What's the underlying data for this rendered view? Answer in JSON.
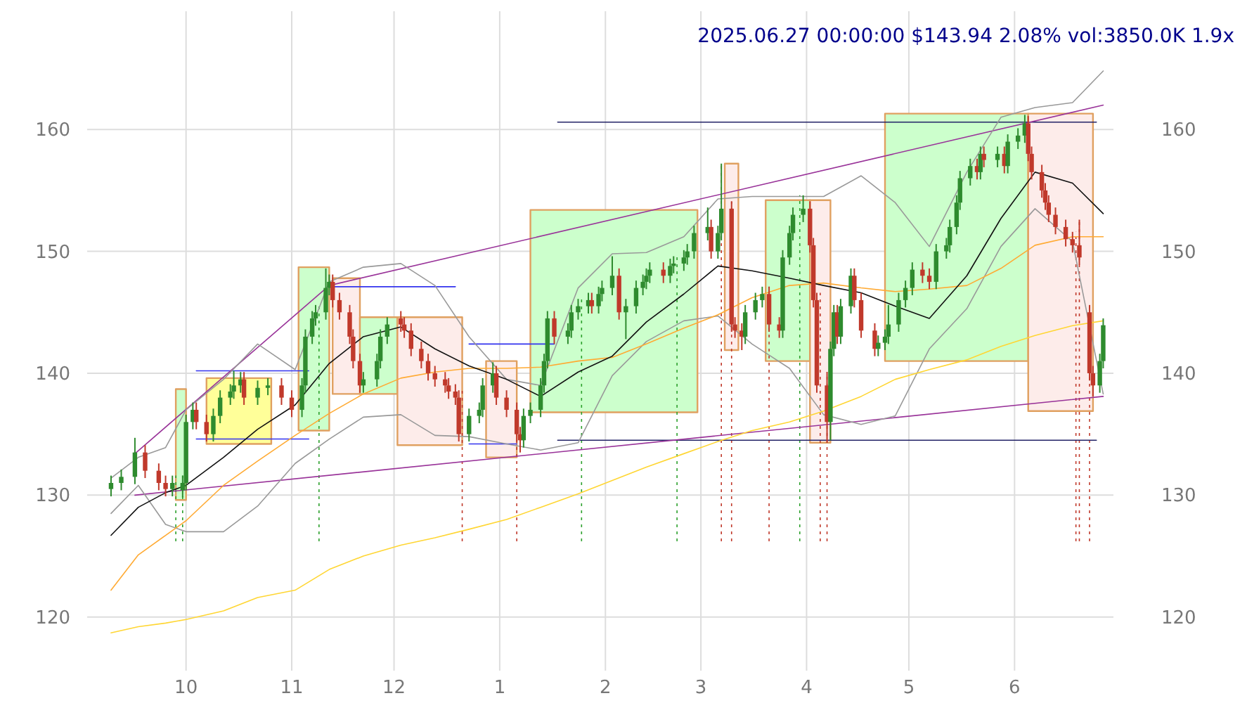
{
  "chart_data": {
    "type": "candlestick",
    "title": "2025.06.27 00:00:00 $143.94 2.08% vol:3850.0K 1.9x",
    "xlim": [
      "2024-09-02",
      "2025-06-30"
    ],
    "xticks": [
      {
        "value": "2024-10-01",
        "label": "10"
      },
      {
        "value": "2024-11-01",
        "label": "11"
      },
      {
        "value": "2024-12-01",
        "label": "12"
      },
      {
        "value": "2025-01-01",
        "label": "1"
      },
      {
        "value": "2025-02-01",
        "label": "2"
      },
      {
        "value": "2025-03-01",
        "label": "3"
      },
      {
        "value": "2025-04-01",
        "label": "4"
      },
      {
        "value": "2025-05-01",
        "label": "5"
      },
      {
        "value": "2025-06-01",
        "label": "6"
      }
    ],
    "ylim": [
      115.6,
      169.7
    ],
    "yticks": [
      120,
      130,
      140,
      150,
      160
    ],
    "y2lim": [
      115.6,
      169.7
    ],
    "y2ticks": [
      120,
      130,
      140,
      150,
      160
    ],
    "grid": true,
    "x": [
      "2024-09-09",
      "2024-09-17",
      "2024-09-25",
      "2024-10-01",
      "2024-10-12",
      "2024-10-22",
      "2024-11-02",
      "2024-11-12",
      "2024-11-22",
      "2024-12-03",
      "2024-12-13",
      "2024-12-23",
      "2025-01-03",
      "2025-01-13",
      "2025-01-24",
      "2025-02-03",
      "2025-02-13",
      "2025-02-24",
      "2025-03-06",
      "2025-03-16",
      "2025-03-27",
      "2025-04-06",
      "2025-04-17",
      "2025-04-27",
      "2025-05-07",
      "2025-05-18",
      "2025-05-28",
      "2025-06-07",
      "2025-06-18",
      "2025-06-27"
    ],
    "series": [
      {
        "type": "area",
        "color": "#ccffcc",
        "x": [
          "2024-09-28",
          "2024-09-28",
          "2024-10-01",
          "2024-10-01"
        ],
        "values": [
          129.6,
          138.7,
          138.7,
          129.6
        ]
      },
      {
        "type": "area",
        "color": "#ffff99",
        "x": [
          "2024-10-07",
          "2024-10-07",
          "2024-10-26",
          "2024-10-26"
        ],
        "values": [
          134.2,
          139.6,
          139.6,
          134.2
        ]
      },
      {
        "type": "area",
        "color": "#ccffcc",
        "x": [
          "2024-11-03",
          "2024-11-03",
          "2024-11-12",
          "2024-11-12"
        ],
        "values": [
          135.3,
          148.7,
          148.7,
          135.3
        ]
      },
      {
        "type": "area",
        "color": "#fdecea",
        "x": [
          "2024-11-13",
          "2024-11-13",
          "2024-11-21",
          "2024-11-21"
        ],
        "values": [
          138.3,
          147.8,
          147.8,
          138.3
        ]
      },
      {
        "type": "area",
        "color": "#ccffcc",
        "x": [
          "2024-11-21",
          "2024-11-21",
          "2024-12-02",
          "2024-12-02"
        ],
        "values": [
          138.3,
          144.6,
          144.6,
          138.3
        ]
      },
      {
        "type": "area",
        "color": "#fdecea",
        "x": [
          "2024-12-02",
          "2024-12-02",
          "2024-12-21",
          "2024-12-21"
        ],
        "values": [
          134.1,
          144.6,
          144.6,
          134.1
        ]
      },
      {
        "type": "area",
        "color": "#fdecea",
        "x": [
          "2024-12-28",
          "2024-12-28",
          "2025-01-06",
          "2025-01-06"
        ],
        "values": [
          133.1,
          141,
          141,
          133.1
        ]
      },
      {
        "type": "area",
        "color": "#ccffcc",
        "x": [
          "2025-01-10",
          "2025-01-10",
          "2025-02-28",
          "2025-02-28"
        ],
        "values": [
          136.8,
          153.4,
          153.4,
          136.8
        ]
      },
      {
        "type": "area",
        "color": "#fdecea",
        "x": [
          "2025-03-08",
          "2025-03-08",
          "2025-03-12",
          "2025-03-12"
        ],
        "values": [
          141.9,
          157.2,
          157.2,
          141.9
        ]
      },
      {
        "type": "area",
        "color": "#ccffcc",
        "x": [
          "2025-03-20",
          "2025-03-20",
          "2025-04-02",
          "2025-04-02"
        ],
        "values": [
          141,
          154.2,
          154.2,
          141
        ]
      },
      {
        "type": "area",
        "color": "#fdecea",
        "x": [
          "2025-04-02",
          "2025-04-02",
          "2025-04-08",
          "2025-04-08"
        ],
        "values": [
          134.3,
          154.2,
          154.2,
          134.3
        ]
      },
      {
        "type": "area",
        "color": "#ccffcc",
        "x": [
          "2025-04-24",
          "2025-04-24",
          "2025-06-05",
          "2025-06-05"
        ],
        "values": [
          141,
          161.3,
          161.3,
          141
        ]
      },
      {
        "type": "area",
        "color": "#fdecea",
        "x": [
          "2025-06-05",
          "2025-06-05",
          "2025-06-24",
          "2025-06-24"
        ],
        "values": [
          136.9,
          161.3,
          161.3,
          136.9
        ]
      },
      {
        "type": "line",
        "color": "#3333ee",
        "x": [
          "2024-10-04",
          "2024-11-06"
        ],
        "values": [
          140.2,
          140.2
        ]
      },
      {
        "type": "line",
        "color": "#3333ee",
        "x": [
          "2024-10-04",
          "2024-11-06"
        ],
        "values": [
          134.6,
          134.6
        ]
      },
      {
        "type": "line",
        "color": "#3333ee",
        "x": [
          "2024-11-13",
          "2024-12-19"
        ],
        "values": [
          147.1,
          147.1
        ]
      },
      {
        "type": "line",
        "color": "#3333ee",
        "x": [
          "2024-12-23",
          "2025-01-17"
        ],
        "values": [
          142.4,
          142.4
        ]
      },
      {
        "type": "line",
        "color": "#3333ee",
        "x": [
          "2024-12-23",
          "2025-01-06"
        ],
        "values": [
          134.2,
          134.2
        ]
      },
      {
        "type": "line",
        "color": "#222266",
        "x": [
          "2025-01-18",
          "2025-06-25"
        ],
        "values": [
          160.6,
          160.6
        ]
      },
      {
        "type": "line",
        "color": "#222266",
        "x": [
          "2025-01-18",
          "2025-06-25"
        ],
        "values": [
          134.5,
          134.5
        ]
      },
      {
        "type": "line",
        "color": "#993399",
        "x": [
          "2024-09-16",
          "2024-11-12",
          "2025-06-27"
        ],
        "values": [
          133.4,
          147.2,
          162
        ]
      },
      {
        "type": "line",
        "color": "#993399",
        "x": [
          "2024-09-16",
          "2025-06-27"
        ],
        "values": [
          130,
          138.1
        ]
      },
      {
        "type": "line",
        "color": "#999999",
        "values": [
          131.4,
          133.1,
          133.9,
          137,
          139.5,
          142.4,
          140.3,
          147.5,
          148.7,
          149,
          147.2,
          143,
          139.5,
          139,
          147,
          149.8,
          149.9,
          151.2,
          154.3,
          154.5,
          154.5,
          154.5,
          156.2,
          154,
          150.4,
          156.5,
          161,
          161.8,
          162.2,
          164.8
        ]
      },
      {
        "type": "line",
        "color": "#999999",
        "values": [
          128.5,
          130.8,
          127.6,
          127,
          127,
          129.1,
          132.6,
          134.6,
          136.4,
          136.6,
          134.9,
          134.8,
          134.2,
          133.7,
          134.3,
          139.8,
          142.6,
          144.3,
          144.7,
          142.4,
          140.4,
          136.6,
          135.8,
          136.5,
          142,
          145.3,
          150.4,
          153.5,
          150.8,
          138.3
        ]
      },
      {
        "type": "line",
        "color": "#ffd633",
        "values": [
          118.7,
          119.2,
          119.5,
          119.8,
          120.5,
          121.6,
          122.2,
          123.9,
          125,
          125.9,
          126.5,
          127.2,
          128,
          129,
          130.1,
          131.2,
          132.3,
          133.4,
          134.4,
          135.3,
          136,
          136.9,
          138.1,
          139.5,
          140.3,
          141.1,
          142.2,
          143.1,
          143.9,
          144.3
        ]
      },
      {
        "type": "line",
        "color": "#ffaa33",
        "values": [
          122.2,
          125.1,
          126.7,
          127.9,
          130.8,
          132.8,
          134.9,
          136.7,
          138.3,
          139.6,
          140.1,
          140.4,
          140.4,
          140.5,
          141,
          141.3,
          142.4,
          143.7,
          144.8,
          146.2,
          147.2,
          147.4,
          147,
          146.7,
          146.9,
          147.2,
          148.6,
          150.5,
          151.2,
          151.2
        ]
      },
      {
        "type": "line",
        "color": "#111111",
        "values": [
          126.7,
          129,
          130.2,
          130.8,
          133.1,
          135.4,
          137.4,
          140.8,
          143,
          143.8,
          142,
          140.6,
          139.5,
          138.1,
          140.1,
          141.4,
          144.2,
          146.5,
          148.8,
          148.4,
          147.8,
          147.2,
          146.6,
          145.5,
          144.5,
          148,
          152.7,
          156.5,
          155.6,
          153.1
        ]
      },
      {
        "type": "candlestick",
        "colors": [
          "#2e8b2e",
          "#2e8b2e",
          "#2e8b2e",
          "#c0392b",
          "#c0392b",
          "#c0392b",
          "#2e8b2e",
          "#2e8b2e",
          "#2e8b2e",
          "#2e8b2e",
          "#c0392b",
          "#c0392b",
          "#2e8b2e",
          "#2e8b2e",
          "#2e8b2e",
          "#2e8b2e",
          "#2e8b2e",
          "#c0392b",
          "#2e8b2e",
          "#2e8b2e",
          "#c0392b",
          "#c0392b",
          "#2e8b2e",
          "#2e8b2e",
          "#2e8b2e",
          "#2e8b2e",
          "#2e8b2e",
          "#2e8b2e",
          "#c0392b",
          "#c0392b",
          "#c0392b",
          "#c0392b",
          "#c0392b",
          "#2e8b2e",
          "#2e8b2e",
          "#2e8b2e",
          "#2e8b2e",
          "#c0392b",
          "#c0392b",
          "#c0392b",
          "#c0392b",
          "#c0392b",
          "#c0392b",
          "#c0392b",
          "#c0392b",
          "#c0392b",
          "#c0392b",
          "#2e8b2e",
          "#2e8b2e",
          "#2e8b2e",
          "#2e8b2e",
          "#c0392b",
          "#c0392b",
          "#c0392b",
          "#c0392b",
          "#2e8b2e",
          "#2e8b2e",
          "#2e8b2e",
          "#2e8b2e",
          "#2e8b2e",
          "#c0392b",
          "#2e8b2e",
          "#2e8b2e",
          "#2e8b2e",
          "#2e8b2e",
          "#c0392b",
          "#2e8b2e",
          "#2e8b2e",
          "#2e8b2e",
          "#c0392b",
          "#2e8b2e",
          "#2e8b2e",
          "#2e8b2e",
          "#2e8b2e",
          "#2e8b2e",
          "#c0392b",
          "#2e8b2e",
          "#2e8b2e",
          "#2e8b2e",
          "#2e8b2e",
          "#2e8b2e",
          "#2e8b2e",
          "#c0392b",
          "#2e8b2e",
          "#2e8b2e",
          "#c0392b",
          "#c0392b",
          "#c0392b",
          "#2e8b2e",
          "#2e8b2e",
          "#2e8b2e",
          "#c0392b",
          "#c0392b",
          "#2e8b2e",
          "#2e8b2e",
          "#2e8b2e",
          "#2e8b2e",
          "#c0392b",
          "#c0392b",
          "#c0392b",
          "#c0392b",
          "#2e8b2e",
          "#2e8b2e",
          "#c0392b",
          "#2e8b2e",
          "#2e8b2e",
          "#c0392b",
          "#c0392b",
          "#c0392b",
          "#2e8b2e",
          "#2e8b2e",
          "#2e8b2e",
          "#2e8b2e",
          "#2e8b2e",
          "#2e8b2e",
          "#c0392b",
          "#c0392b",
          "#2e8b2e",
          "#2e8b2e",
          "#2e8b2e",
          "#2e8b2e",
          "#2e8b2e",
          "#2e8b2e",
          "#c0392b",
          "#2e8b2e",
          "#c0392b",
          "#2e8b2e",
          "#c0392b",
          "#2e8b2e",
          "#2e8b2e",
          "#2e8b2e",
          "#c0392b",
          "#c0392b",
          "#c0392b",
          "#c0392b",
          "#c0392b",
          "#c0392b",
          "#c0392b",
          "#c0392b",
          "#c0392b",
          "#c0392b",
          "#c0392b",
          "#2e8b2e",
          "#2e8b2e"
        ],
        "x": [
          "2024-09-09",
          "2024-09-12",
          "2024-09-16",
          "2024-09-19",
          "2024-09-23",
          "2024-09-25",
          "2024-09-27",
          "2024-09-30",
          "2024-10-01",
          "2024-10-03",
          "2024-10-04",
          "2024-10-07",
          "2024-10-09",
          "2024-10-11",
          "2024-10-14",
          "2024-10-15",
          "2024-10-17",
          "2024-10-18",
          "2024-10-22",
          "2024-10-25",
          "2024-10-29",
          "2024-11-01",
          "2024-11-04",
          "2024-11-05",
          "2024-11-07",
          "2024-11-08",
          "2024-11-11",
          "2024-11-12",
          "2024-11-13",
          "2024-11-15",
          "2024-11-18",
          "2024-11-19",
          "2024-11-21",
          "2024-11-22",
          "2024-11-26",
          "2024-11-27",
          "2024-11-29",
          "2024-12-03",
          "2024-12-04",
          "2024-12-06",
          "2024-12-09",
          "2024-12-11",
          "2024-12-13",
          "2024-12-16",
          "2024-12-17",
          "2024-12-19",
          "2024-12-20",
          "2024-12-23",
          "2024-12-26",
          "2024-12-27",
          "2024-12-30",
          "2024-12-31",
          "2025-01-03",
          "2025-01-06",
          "2025-01-07",
          "2025-01-08",
          "2025-01-10",
          "2025-01-13",
          "2025-01-14",
          "2025-01-15",
          "2025-01-17",
          "2025-01-21",
          "2025-01-22",
          "2025-01-24",
          "2025-01-27",
          "2025-01-28",
          "2025-01-30",
          "2025-01-31",
          "2025-02-03",
          "2025-02-05",
          "2025-02-07",
          "2025-02-10",
          "2025-02-12",
          "2025-02-13",
          "2025-02-14",
          "2025-02-18",
          "2025-02-20",
          "2025-02-21",
          "2025-02-24",
          "2025-02-25",
          "2025-02-27",
          "2025-03-03",
          "2025-03-04",
          "2025-03-06",
          "2025-03-07",
          "2025-03-10",
          "2025-03-11",
          "2025-03-13",
          "2025-03-14",
          "2025-03-17",
          "2025-03-19",
          "2025-03-21",
          "2025-03-24",
          "2025-03-25",
          "2025-03-27",
          "2025-03-28",
          "2025-03-31",
          "2025-04-02",
          "2025-04-03",
          "2025-04-04",
          "2025-04-07",
          "2025-04-08",
          "2025-04-09",
          "2025-04-10",
          "2025-04-11",
          "2025-04-14",
          "2025-04-15",
          "2025-04-17",
          "2025-04-21",
          "2025-04-22",
          "2025-04-24",
          "2025-04-25",
          "2025-04-28",
          "2025-04-30",
          "2025-05-02",
          "2025-05-05",
          "2025-05-07",
          "2025-05-09",
          "2025-05-12",
          "2025-05-13",
          "2025-05-15",
          "2025-05-16",
          "2025-05-19",
          "2025-05-21",
          "2025-05-22",
          "2025-05-23",
          "2025-05-27",
          "2025-05-29",
          "2025-05-30",
          "2025-06-02",
          "2025-06-04",
          "2025-06-05",
          "2025-06-06",
          "2025-06-09",
          "2025-06-10",
          "2025-06-11",
          "2025-06-13",
          "2025-06-16",
          "2025-06-18",
          "2025-06-20",
          "2025-06-23",
          "2025-06-24",
          "2025-06-26",
          "2025-06-27"
        ],
        "ohlc": [
          [
            130.5,
            131.6,
            129.9,
            131
          ],
          [
            131,
            132.1,
            130.4,
            131.5
          ],
          [
            131.5,
            134.7,
            130.9,
            133.5
          ],
          [
            133.5,
            134.1,
            131.4,
            132
          ],
          [
            132,
            132.6,
            130.4,
            131
          ],
          [
            131,
            131.6,
            129.9,
            130.5
          ],
          [
            130.5,
            131.6,
            129.9,
            131
          ],
          [
            130.4,
            131.6,
            129.8,
            131
          ],
          [
            131,
            136.6,
            130.4,
            136
          ],
          [
            136,
            137.6,
            135.4,
            137
          ],
          [
            137,
            137.6,
            135.4,
            136
          ],
          [
            136,
            136.6,
            134.4,
            135
          ],
          [
            135,
            137.1,
            134.4,
            136.5
          ],
          [
            136.5,
            138.6,
            135.9,
            138
          ],
          [
            138,
            139.1,
            137.4,
            138.5
          ],
          [
            138.5,
            140.2,
            137.9,
            139
          ],
          [
            139,
            140.1,
            138.4,
            139.5
          ],
          [
            139.5,
            140.1,
            137.4,
            138
          ],
          [
            138,
            139.4,
            137.4,
            138.8
          ],
          [
            138.8,
            139.6,
            138.2,
            139
          ],
          [
            139,
            139.6,
            137.4,
            138
          ],
          [
            138,
            138.6,
            136.4,
            137
          ],
          [
            137,
            139.6,
            136.4,
            139
          ],
          [
            139,
            143.6,
            138.4,
            143
          ],
          [
            143,
            145.1,
            142.4,
            144.5
          ],
          [
            144.5,
            145.6,
            143.9,
            145
          ],
          [
            145,
            148.6,
            144.4,
            147
          ],
          [
            147,
            148.1,
            146.4,
            147.5
          ],
          [
            147.5,
            148.1,
            145.4,
            146
          ],
          [
            146,
            146.6,
            144.4,
            145
          ],
          [
            145,
            145.6,
            142.4,
            143
          ],
          [
            143,
            143.6,
            140.4,
            141
          ],
          [
            141,
            141.6,
            138.4,
            139
          ],
          [
            139,
            140.1,
            138.4,
            139.5
          ],
          [
            139.5,
            141.6,
            138.9,
            141
          ],
          [
            141,
            143.6,
            140.4,
            143
          ],
          [
            143,
            144.6,
            142.4,
            144
          ],
          [
            144.5,
            145.1,
            143.4,
            144
          ],
          [
            144,
            144.6,
            142.9,
            143.5
          ],
          [
            143.5,
            144.1,
            141.4,
            142
          ],
          [
            142,
            142.6,
            140.4,
            141
          ],
          [
            141,
            141.6,
            139.4,
            140
          ],
          [
            140,
            140.6,
            138.9,
            139.5
          ],
          [
            139.5,
            140.1,
            138.4,
            139
          ],
          [
            139,
            139.6,
            137.9,
            138.5
          ],
          [
            138.5,
            139.1,
            137.4,
            138
          ],
          [
            138,
            138.6,
            134.4,
            135
          ],
          [
            135,
            137.1,
            134.4,
            136.5
          ],
          [
            136.5,
            137.6,
            135.9,
            137
          ],
          [
            137,
            139.6,
            136.4,
            139
          ],
          [
            139,
            140.9,
            138.4,
            140
          ],
          [
            140,
            140.6,
            137.4,
            138
          ],
          [
            138,
            138.6,
            136.4,
            137
          ],
          [
            137,
            137.6,
            134.4,
            135
          ],
          [
            135,
            135.6,
            133.5,
            134.5
          ],
          [
            134.5,
            137.1,
            133.9,
            136.5
          ],
          [
            136.5,
            137.6,
            135.9,
            137
          ],
          [
            137,
            139.6,
            136.4,
            139
          ],
          [
            139,
            141.6,
            138.4,
            141
          ],
          [
            141,
            145.1,
            140.4,
            144.5
          ],
          [
            144.5,
            145.1,
            142.4,
            143
          ],
          [
            143,
            144.1,
            142.4,
            143.5
          ],
          [
            143.5,
            145.6,
            142.9,
            145
          ],
          [
            145,
            146.1,
            144.4,
            145.5
          ],
          [
            145.5,
            146.6,
            144.9,
            146
          ],
          [
            146,
            146.6,
            144.9,
            145.5
          ],
          [
            145.5,
            147.1,
            144.9,
            146.5
          ],
          [
            146.5,
            147.6,
            145.9,
            147
          ],
          [
            147,
            149.6,
            146.4,
            148
          ],
          [
            148,
            148.6,
            144.4,
            145
          ],
          [
            145,
            146.1,
            142.8,
            145.5
          ],
          [
            145.5,
            147.6,
            144.9,
            147
          ],
          [
            147,
            148.1,
            146.4,
            147.5
          ],
          [
            147.5,
            148.6,
            146.9,
            148
          ],
          [
            148,
            149.1,
            147.4,
            148.5
          ],
          [
            148.5,
            149.1,
            147.4,
            148
          ],
          [
            148,
            149.4,
            147.4,
            148.8
          ],
          [
            148.8,
            149.6,
            148.2,
            149
          ],
          [
            149,
            150.1,
            148.4,
            149.5
          ],
          [
            149.5,
            150.6,
            148.9,
            150
          ],
          [
            150,
            152.1,
            149.4,
            151.5
          ],
          [
            151.5,
            153.6,
            150.9,
            152
          ],
          [
            152,
            152.6,
            149.4,
            150
          ],
          [
            150,
            152.1,
            149.4,
            151.5
          ],
          [
            151.5,
            157.2,
            150.9,
            153.5
          ],
          [
            153.5,
            154.1,
            143.4,
            144
          ],
          [
            144,
            144.6,
            142.9,
            143.5
          ],
          [
            143.5,
            144.1,
            141.9,
            143
          ],
          [
            143,
            145.6,
            142.4,
            145
          ],
          [
            145,
            146.6,
            144.4,
            146
          ],
          [
            146,
            147.1,
            145.4,
            146.5
          ],
          [
            146.5,
            147.1,
            143.4,
            144
          ],
          [
            144,
            144.6,
            142.9,
            143.5
          ],
          [
            143.5,
            150.1,
            142.9,
            149.5
          ],
          [
            149.5,
            152.1,
            148.9,
            151.5
          ],
          [
            151.5,
            153.6,
            150.9,
            153
          ],
          [
            153,
            154.6,
            152.4,
            153.5
          ],
          [
            153.5,
            154.1,
            149.9,
            150.5
          ],
          [
            150.5,
            151.1,
            145.4,
            146
          ],
          [
            146,
            146.6,
            138.4,
            139
          ],
          [
            139,
            140.1,
            134.3,
            136
          ],
          [
            136,
            142.6,
            134.5,
            142
          ],
          [
            142,
            145.6,
            141.4,
            145
          ],
          [
            145,
            145.6,
            142.4,
            143
          ],
          [
            143,
            146.1,
            142.4,
            145.5
          ],
          [
            145.5,
            148.6,
            144.9,
            148
          ],
          [
            148,
            148.6,
            145.4,
            146
          ],
          [
            146,
            146.6,
            142.9,
            143.5
          ],
          [
            143.5,
            144.1,
            141.4,
            142
          ],
          [
            142,
            143.1,
            141.4,
            142.5
          ],
          [
            142.5,
            143.6,
            141.9,
            143
          ],
          [
            143,
            145.6,
            142.4,
            144
          ],
          [
            144,
            146.6,
            143.4,
            146
          ],
          [
            146,
            147.6,
            145.4,
            147
          ],
          [
            147,
            149.1,
            146.4,
            148.5
          ],
          [
            148.5,
            149.1,
            147.4,
            148
          ],
          [
            148,
            148.6,
            146.9,
            147.5
          ],
          [
            147.5,
            150.6,
            146.9,
            150
          ],
          [
            150,
            151.1,
            149.4,
            150.5
          ],
          [
            150.5,
            152.6,
            149.9,
            152
          ],
          [
            152,
            154.6,
            151.4,
            154
          ],
          [
            154,
            156.6,
            153.4,
            156
          ],
          [
            156,
            157.6,
            155.4,
            157
          ],
          [
            157,
            157.6,
            155.9,
            156.5
          ],
          [
            156.5,
            158.6,
            155.9,
            158
          ],
          [
            158,
            158.6,
            156.9,
            157.5
          ],
          [
            157.5,
            158.6,
            156.9,
            158
          ],
          [
            158,
            158.6,
            156.4,
            157
          ],
          [
            157,
            159.6,
            156.4,
            159
          ],
          [
            159,
            160.1,
            158.4,
            159.5
          ],
          [
            159.5,
            161.2,
            158.9,
            160.5
          ],
          [
            160.5,
            161.1,
            157.4,
            158
          ],
          [
            158,
            158.6,
            155.9,
            156.5
          ],
          [
            156.5,
            157.1,
            154.4,
            155
          ],
          [
            155,
            155.6,
            153.4,
            154
          ],
          [
            154,
            154.6,
            152.4,
            153
          ],
          [
            153,
            153.6,
            151.4,
            152
          ],
          [
            152,
            152.6,
            150.4,
            151
          ],
          [
            151,
            151.6,
            149.9,
            150.5
          ],
          [
            150.5,
            152.6,
            148.9,
            149.5
          ],
          [
            145,
            145.6,
            139.4,
            140
          ],
          [
            140,
            140.6,
            138.1,
            139
          ],
          [
            139,
            141.6,
            138.4,
            141
          ],
          [
            141,
            144.5,
            140.4,
            143.94
          ]
        ]
      }
    ],
    "ref_lines": [
      {
        "axis": "x",
        "value": "2024-09-28",
        "color": "#2ca02c",
        "line_style": "dotted"
      },
      {
        "axis": "x",
        "value": "2024-09-30",
        "color": "#2ca02c",
        "line_style": "dotted"
      },
      {
        "axis": "x",
        "value": "2024-11-09",
        "color": "#2ca02c",
        "line_style": "dotted"
      },
      {
        "axis": "x",
        "value": "2024-12-21",
        "color": "#c0392b",
        "line_style": "dotted"
      },
      {
        "axis": "x",
        "value": "2025-01-06",
        "color": "#c0392b",
        "line_style": "dotted"
      },
      {
        "axis": "x",
        "value": "2025-01-25",
        "color": "#2ca02c",
        "line_style": "dotted"
      },
      {
        "axis": "x",
        "value": "2025-02-22",
        "color": "#2ca02c",
        "line_style": "dotted"
      },
      {
        "axis": "x",
        "value": "2025-03-07",
        "color": "#c0392b",
        "line_style": "dotted"
      },
      {
        "axis": "x",
        "value": "2025-03-10",
        "color": "#c0392b",
        "line_style": "dotted"
      },
      {
        "axis": "x",
        "value": "2025-03-21",
        "color": "#c0392b",
        "line_style": "dotted"
      },
      {
        "axis": "x",
        "value": "2025-03-30",
        "color": "#2ca02c",
        "line_style": "dotted"
      },
      {
        "axis": "x",
        "value": "2025-04-05",
        "color": "#c0392b",
        "line_style": "dotted"
      },
      {
        "axis": "x",
        "value": "2025-04-07",
        "color": "#c0392b",
        "line_style": "dotted"
      },
      {
        "axis": "x",
        "value": "2025-06-19",
        "color": "#c0392b",
        "line_style": "dotted"
      },
      {
        "axis": "x",
        "value": "2025-06-20",
        "color": "#c0392b",
        "line_style": "dotted"
      },
      {
        "axis": "x",
        "value": "2025-06-23",
        "color": "#c0392b",
        "line_style": "dotted"
      }
    ]
  }
}
